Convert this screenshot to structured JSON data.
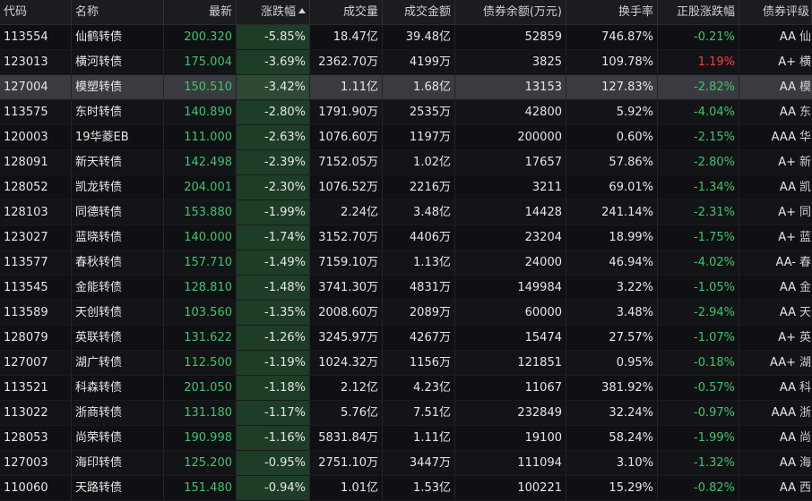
{
  "header": {
    "code": "代码",
    "name": "名称",
    "price": "最新",
    "change": "涨跌幅",
    "volume": "成交量",
    "amount": "成交金额",
    "balance": "债券余额(万元)",
    "turnover": "换手率",
    "stock_change": "正股涨跌幅",
    "rating": "债券评级"
  },
  "sort": {
    "column": "change",
    "direction": "ascending",
    "icon": "sort-up-triangle-icon"
  },
  "colors": {
    "down": "#3cc66b",
    "up": "#ff3b3b",
    "change_column_bg": "#1d3d26",
    "selected_row_bg": "#3a3b40"
  },
  "rows": [
    {
      "code": "113554",
      "name": "仙鹤转债",
      "price": "200.320",
      "change": "-5.85%",
      "volume": "18.47亿",
      "amount": "39.48亿",
      "balance": "52859",
      "turnover": "746.87%",
      "stock_change": "-0.21%",
      "stock_dir": "down",
      "rating": "AA",
      "issuer": "仙"
    },
    {
      "code": "123013",
      "name": "横河转债",
      "price": "175.004",
      "change": "-3.69%",
      "volume": "2362.70万",
      "amount": "4199万",
      "balance": "3825",
      "turnover": "109.78%",
      "stock_change": "1.19%",
      "stock_dir": "up",
      "rating": "A+",
      "issuer": "横"
    },
    {
      "code": "127004",
      "name": "模塑转债",
      "price": "150.510",
      "change": "-3.42%",
      "volume": "1.11亿",
      "amount": "1.68亿",
      "balance": "13153",
      "turnover": "127.83%",
      "stock_change": "-2.82%",
      "stock_dir": "down",
      "rating": "AA",
      "issuer": "模",
      "selected": true
    },
    {
      "code": "113575",
      "name": "东时转债",
      "price": "140.890",
      "change": "-2.80%",
      "volume": "1791.90万",
      "amount": "2535万",
      "balance": "42800",
      "turnover": "5.92%",
      "stock_change": "-4.04%",
      "stock_dir": "down",
      "rating": "AA",
      "issuer": "东"
    },
    {
      "code": "120003",
      "name": "19华菱EB",
      "price": "111.000",
      "change": "-2.63%",
      "volume": "1076.60万",
      "amount": "1197万",
      "balance": "200000",
      "turnover": "0.60%",
      "stock_change": "-2.15%",
      "stock_dir": "down",
      "rating": "AAA",
      "issuer": "华"
    },
    {
      "code": "128091",
      "name": "新天转债",
      "price": "142.498",
      "change": "-2.39%",
      "volume": "7152.05万",
      "amount": "1.02亿",
      "balance": "17657",
      "turnover": "57.86%",
      "stock_change": "-2.80%",
      "stock_dir": "down",
      "rating": "A+",
      "issuer": "新"
    },
    {
      "code": "128052",
      "name": "凯龙转债",
      "price": "204.001",
      "change": "-2.30%",
      "volume": "1076.52万",
      "amount": "2216万",
      "balance": "3211",
      "turnover": "69.01%",
      "stock_change": "-1.34%",
      "stock_dir": "down",
      "rating": "AA",
      "issuer": "凯"
    },
    {
      "code": "128103",
      "name": "同德转债",
      "price": "153.880",
      "change": "-1.99%",
      "volume": "2.24亿",
      "amount": "3.48亿",
      "balance": "14428",
      "turnover": "241.14%",
      "stock_change": "-2.31%",
      "stock_dir": "down",
      "rating": "A+",
      "issuer": "同"
    },
    {
      "code": "123027",
      "name": "蓝晓转债",
      "price": "140.000",
      "change": "-1.74%",
      "volume": "3152.70万",
      "amount": "4406万",
      "balance": "23204",
      "turnover": "18.99%",
      "stock_change": "-1.75%",
      "stock_dir": "down",
      "rating": "A+",
      "issuer": "蓝"
    },
    {
      "code": "113577",
      "name": "春秋转债",
      "price": "157.710",
      "change": "-1.49%",
      "volume": "7159.10万",
      "amount": "1.13亿",
      "balance": "24000",
      "turnover": "46.94%",
      "stock_change": "-4.02%",
      "stock_dir": "down",
      "rating": "AA-",
      "issuer": "春"
    },
    {
      "code": "113545",
      "name": "金能转债",
      "price": "128.810",
      "change": "-1.48%",
      "volume": "3741.30万",
      "amount": "4831万",
      "balance": "149984",
      "turnover": "3.22%",
      "stock_change": "-1.05%",
      "stock_dir": "down",
      "rating": "AA",
      "issuer": "金"
    },
    {
      "code": "113589",
      "name": "天创转债",
      "price": "103.560",
      "change": "-1.35%",
      "volume": "2008.60万",
      "amount": "2089万",
      "balance": "60000",
      "turnover": "3.48%",
      "stock_change": "-2.94%",
      "stock_dir": "down",
      "rating": "AA",
      "issuer": "天"
    },
    {
      "code": "128079",
      "name": "英联转债",
      "price": "131.622",
      "change": "-1.26%",
      "volume": "3245.97万",
      "amount": "4267万",
      "balance": "15474",
      "turnover": "27.57%",
      "stock_change": "-1.07%",
      "stock_dir": "down",
      "rating": "A+",
      "issuer": "英"
    },
    {
      "code": "127007",
      "name": "湖广转债",
      "price": "112.500",
      "change": "-1.19%",
      "volume": "1024.32万",
      "amount": "1156万",
      "balance": "121851",
      "turnover": "0.95%",
      "stock_change": "-0.18%",
      "stock_dir": "down",
      "rating": "AA+",
      "issuer": "湖"
    },
    {
      "code": "113521",
      "name": "科森转债",
      "price": "201.050",
      "change": "-1.18%",
      "volume": "2.12亿",
      "amount": "4.23亿",
      "balance": "11067",
      "turnover": "381.92%",
      "stock_change": "-0.57%",
      "stock_dir": "down",
      "rating": "AA",
      "issuer": "科"
    },
    {
      "code": "113022",
      "name": "浙商转债",
      "price": "131.180",
      "change": "-1.17%",
      "volume": "5.76亿",
      "amount": "7.51亿",
      "balance": "232849",
      "turnover": "32.24%",
      "stock_change": "-0.97%",
      "stock_dir": "down",
      "rating": "AAA",
      "issuer": "浙"
    },
    {
      "code": "128053",
      "name": "尚荣转债",
      "price": "190.998",
      "change": "-1.16%",
      "volume": "5831.84万",
      "amount": "1.11亿",
      "balance": "19100",
      "turnover": "58.24%",
      "stock_change": "-1.99%",
      "stock_dir": "down",
      "rating": "AA",
      "issuer": "尚"
    },
    {
      "code": "127003",
      "name": "海印转债",
      "price": "125.200",
      "change": "-0.95%",
      "volume": "2751.10万",
      "amount": "3447万",
      "balance": "111094",
      "turnover": "3.10%",
      "stock_change": "-1.32%",
      "stock_dir": "down",
      "rating": "AA",
      "issuer": "海"
    },
    {
      "code": "110060",
      "name": "天路转债",
      "price": "151.480",
      "change": "-0.94%",
      "volume": "1.01亿",
      "amount": "1.53亿",
      "balance": "100221",
      "turnover": "15.29%",
      "stock_change": "-0.82%",
      "stock_dir": "down",
      "rating": "AA",
      "issuer": "西"
    }
  ]
}
